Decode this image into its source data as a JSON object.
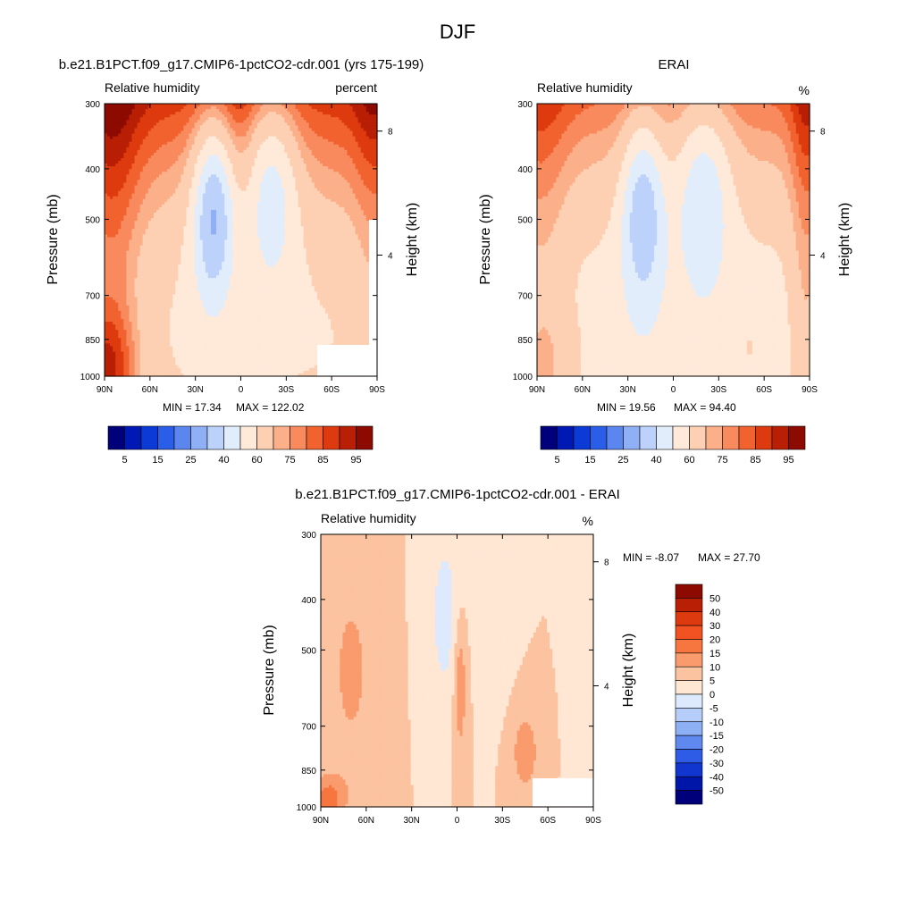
{
  "figure": {
    "title": "DJF"
  },
  "chart_data": [
    {
      "type": "heatmap",
      "title": "b.e21.B1PCT.f09_g17.CMIP6-1pctCO2-cdr.001 (yrs 175-199)",
      "left_string": "Relative humidity",
      "right_string": "percent",
      "ylabel": "Pressure (mb)",
      "y2label": "Height (km)",
      "x_ticks": [
        "90N",
        "60N",
        "30N",
        "0",
        "30S",
        "60S",
        "90S"
      ],
      "y_ticks": [
        "300",
        "400",
        "500",
        "700",
        "850",
        "1000"
      ],
      "y_log_scale": true,
      "ylim": [
        1000,
        300
      ],
      "y2_ticks": [
        "8",
        "4"
      ],
      "min_label": "MIN =  17.34",
      "max_label": "MAX = 122.02",
      "min": 17.34,
      "max": 122.02,
      "colorbar": {
        "orientation": "horizontal",
        "levels": [
          "5",
          "15",
          "25",
          "40",
          "60",
          "75",
          "85",
          "95"
        ]
      }
    },
    {
      "type": "heatmap",
      "title": "ERAI",
      "left_string": "Relative humidity",
      "right_string": "%",
      "ylabel": "Pressure (mb)",
      "y2label": "Height (km)",
      "x_ticks": [
        "90N",
        "60N",
        "30N",
        "0",
        "30S",
        "60S",
        "90S"
      ],
      "y_ticks": [
        "300",
        "400",
        "500",
        "700",
        "850",
        "1000"
      ],
      "y_log_scale": true,
      "ylim": [
        1000,
        300
      ],
      "y2_ticks": [
        "8",
        "4"
      ],
      "min_label": "MIN =  19.56",
      "max_label": "MAX =  94.40",
      "min": 19.56,
      "max": 94.4,
      "colorbar": {
        "orientation": "horizontal",
        "levels": [
          "5",
          "15",
          "25",
          "40",
          "60",
          "75",
          "85",
          "95"
        ]
      }
    },
    {
      "type": "heatmap",
      "title": "b.e21.B1PCT.f09_g17.CMIP6-1pctCO2-cdr.001 - ERAI",
      "left_string": "Relative humidity",
      "right_string": "%",
      "ylabel": "Pressure (mb)",
      "y2label": "Height (km)",
      "x_ticks": [
        "90N",
        "60N",
        "30N",
        "0",
        "30S",
        "60S",
        "90S"
      ],
      "y_ticks": [
        "300",
        "400",
        "500",
        "700",
        "850",
        "1000"
      ],
      "y_log_scale": true,
      "ylim": [
        1000,
        300
      ],
      "y2_ticks": [
        "8",
        "4"
      ],
      "min_label": "MIN =  -8.07",
      "max_label": "MAX =  27.70",
      "min": -8.07,
      "max": 27.7,
      "colorbar": {
        "orientation": "vertical",
        "levels": [
          "50",
          "40",
          "30",
          "20",
          "15",
          "10",
          "5",
          "0",
          "-5",
          "-10",
          "-15",
          "-20",
          "-30",
          "-40",
          "-50"
        ]
      }
    }
  ],
  "colors": {
    "rh_palette": [
      "#00007a",
      "#0018b4",
      "#0b3ad6",
      "#2a5ee8",
      "#5b86ef",
      "#8fb0f5",
      "#bcd2fa",
      "#e2edfc",
      "#ffe9d9",
      "#fdd0b3",
      "#fbb08a",
      "#f98a5e",
      "#f1622f",
      "#de3a0f",
      "#b81f05",
      "#8c0a00"
    ],
    "diff_palette": [
      "#8c0a00",
      "#b81f05",
      "#de3a0f",
      "#f25222",
      "#f7763f",
      "#f99b6d",
      "#fcc3a0",
      "#ffe7d4",
      "#dde9fc",
      "#b6cdf9",
      "#8db0f5",
      "#5f89ef",
      "#2e5ce6",
      "#1036cf",
      "#0016a8",
      "#00007a"
    ]
  }
}
